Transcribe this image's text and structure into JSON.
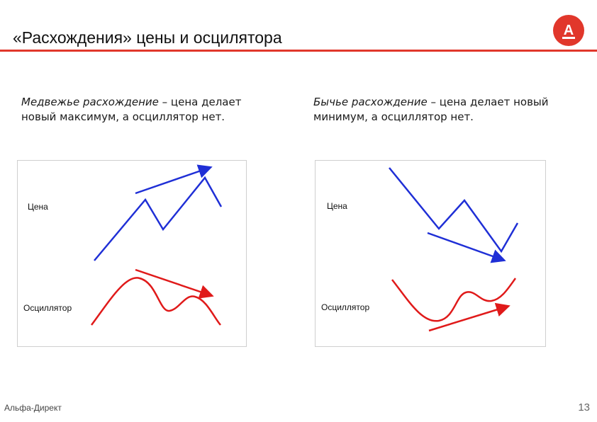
{
  "header": {
    "title": "«Расхождения» цены и осцилятора",
    "logo_letter": "А",
    "accent_color": "#e1372b"
  },
  "left": {
    "term": "Медвежье расхождение",
    "text": " – цена делает новый максимум, а осциллятор нет.",
    "price_label": "Цена",
    "osc_label": "Осциллятор"
  },
  "right": {
    "term": "Бычье расхождение",
    "text": " – цена делает новый минимум, а осциллятор нет.",
    "price_label": "Цена",
    "osc_label": "Осциллятор"
  },
  "colors": {
    "price": "#1f2fd6",
    "oscillator": "#e01a1a"
  },
  "footer": {
    "brand": "Альфа-Директ",
    "page": "13"
  }
}
